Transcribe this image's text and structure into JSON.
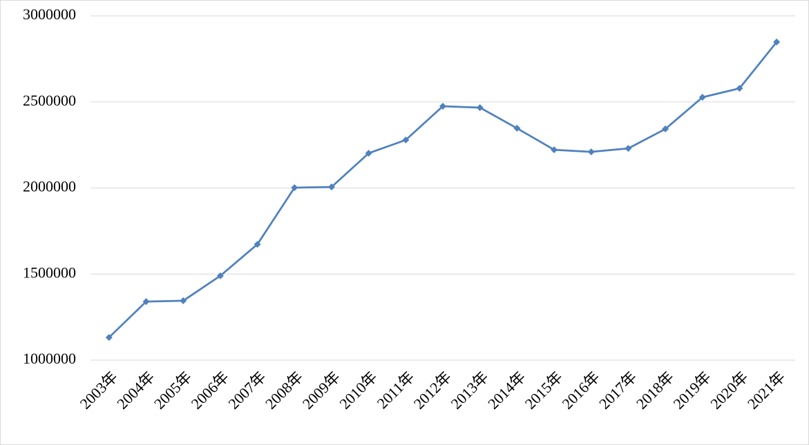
{
  "chart_data": {
    "type": "line",
    "categories": [
      "2003年",
      "2004年",
      "2005年",
      "2006年",
      "2007年",
      "2008年",
      "2009年",
      "2010年",
      "2011年",
      "2012年",
      "2013年",
      "2014年",
      "2015年",
      "2016年",
      "2017年",
      "2018年",
      "2019年",
      "2020年",
      "2021年"
    ],
    "values": [
      1132000,
      1340000,
      1345000,
      1490000,
      1673000,
      2002000,
      2006000,
      2202000,
      2279000,
      2475000,
      2467000,
      2347000,
      2222000,
      2210000,
      2230000,
      2343000,
      2527000,
      2579000,
      2848000
    ],
    "color": "#4f81bd",
    "ylim": [
      1000000,
      3000000
    ],
    "yticks": [
      1000000,
      1500000,
      2000000,
      2500000,
      3000000
    ],
    "grid": true
  }
}
